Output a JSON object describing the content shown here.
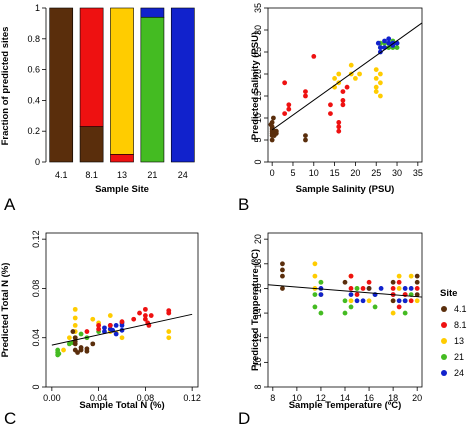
{
  "colors": {
    "4.1": "#5a2e0c",
    "8.1": "#ee1111",
    "13": "#ffcc00",
    "21": "#44bb22",
    "24": "#1122cc"
  },
  "legend": {
    "title": "Site",
    "items": [
      "4.1",
      "8.1",
      "13",
      "21",
      "24"
    ]
  },
  "chart_data": [
    {
      "panel": "A",
      "type": "bar",
      "stacked": true,
      "xlabel": "Sample Site",
      "ylabel": "Fraction of predicted sites",
      "ylim": [
        0,
        1
      ],
      "yticks": [
        "0",
        "0.2",
        "0.4",
        "0.6",
        "0.8",
        "1"
      ],
      "categories": [
        "4.1",
        "8.1",
        "13",
        "21",
        "24"
      ],
      "series": [
        {
          "name": "4.1",
          "values": [
            1.0,
            0.23,
            0.0,
            0.0,
            0.0
          ]
        },
        {
          "name": "8.1",
          "values": [
            0.0,
            0.77,
            0.05,
            0.0,
            0.0
          ]
        },
        {
          "name": "13",
          "values": [
            0.0,
            0.0,
            0.95,
            0.0,
            0.0
          ]
        },
        {
          "name": "21",
          "values": [
            0.0,
            0.0,
            0.0,
            0.94,
            0.0
          ]
        },
        {
          "name": "24",
          "values": [
            0.0,
            0.0,
            0.0,
            0.06,
            1.0
          ]
        }
      ]
    },
    {
      "panel": "B",
      "type": "scatter",
      "xlabel": "Sample Salinity (PSU)",
      "ylabel": "Predicted Salinity (PSU)",
      "xlim": [
        -1,
        36
      ],
      "ylim": [
        0,
        35
      ],
      "xticks": [
        0,
        5,
        10,
        15,
        20,
        25,
        30,
        35
      ],
      "yticks": [
        0,
        5,
        10,
        15,
        20,
        25,
        30,
        35
      ],
      "fit_line": [
        [
          0,
          7.3
        ],
        [
          36,
          31.6
        ]
      ],
      "points": {
        "4.1": [
          [
            0,
            5
          ],
          [
            0,
            6
          ],
          [
            0,
            6.5
          ],
          [
            0,
            7
          ],
          [
            0,
            7.5
          ],
          [
            0,
            8
          ],
          [
            0,
            9
          ],
          [
            0.5,
            6
          ],
          [
            0.5,
            7
          ],
          [
            1,
            6.5
          ],
          [
            1,
            7
          ],
          [
            -0.3,
            8.5
          ],
          [
            0.3,
            10
          ],
          [
            8,
            5
          ],
          [
            8,
            6
          ]
        ],
        "8.1": [
          [
            3,
            18
          ],
          [
            3,
            11
          ],
          [
            4,
            12
          ],
          [
            4,
            13
          ],
          [
            8,
            15
          ],
          [
            8,
            16
          ],
          [
            10,
            24
          ],
          [
            16,
            7
          ],
          [
            16,
            8
          ],
          [
            16,
            9
          ],
          [
            17,
            13
          ],
          [
            17,
            14
          ],
          [
            17,
            16
          ],
          [
            18,
            17
          ],
          [
            14,
            11
          ],
          [
            14,
            13
          ]
        ],
        "13": [
          [
            15,
            17
          ],
          [
            15,
            19
          ],
          [
            16,
            18
          ],
          [
            16,
            20
          ],
          [
            19,
            20
          ],
          [
            19,
            22
          ],
          [
            20,
            19
          ],
          [
            21,
            20
          ],
          [
            25,
            16
          ],
          [
            25,
            17
          ],
          [
            25,
            19
          ],
          [
            26,
            15
          ],
          [
            26,
            18
          ],
          [
            26,
            20
          ],
          [
            25,
            21
          ]
        ],
        "21": [
          [
            26,
            26
          ],
          [
            26,
            27
          ],
          [
            27,
            26
          ],
          [
            27,
            27
          ],
          [
            28,
            26
          ],
          [
            28,
            27
          ],
          [
            29,
            26
          ],
          [
            30,
            26
          ],
          [
            30,
            27
          ],
          [
            29,
            27.5
          ]
        ],
        "24": [
          [
            26,
            25
          ],
          [
            26,
            26
          ],
          [
            27,
            26
          ],
          [
            27,
            27.5
          ],
          [
            28,
            27
          ],
          [
            28,
            28
          ],
          [
            29,
            27
          ],
          [
            30,
            27
          ],
          [
            25.5,
            27
          ],
          [
            29,
            26.5
          ]
        ]
      }
    },
    {
      "panel": "C",
      "type": "scatter",
      "xlabel": "Sample Total N (%)",
      "ylabel": "Predicted Total N (%)",
      "xlim": [
        -0.005,
        0.125
      ],
      "ylim": [
        0,
        0.125
      ],
      "xticks": [
        "0.00",
        "0.04",
        "0.08",
        "0.12"
      ],
      "yticks": [
        "0",
        "0.04",
        "0.08",
        "0.12"
      ],
      "fit_line": [
        [
          0,
          0.034
        ],
        [
          0.12,
          0.059
        ]
      ],
      "points": {
        "4.1": [
          [
            0.02,
            0.03
          ],
          [
            0.022,
            0.028
          ],
          [
            0.025,
            0.032
          ],
          [
            0.025,
            0.03
          ],
          [
            0.03,
            0.029
          ],
          [
            0.03,
            0.031
          ],
          [
            0.035,
            0.035
          ],
          [
            0.018,
            0.045
          ],
          [
            0.02,
            0.04
          ],
          [
            0.02,
            0.035
          ],
          [
            0.02,
            0.037
          ]
        ],
        "8.1": [
          [
            0.03,
            0.045
          ],
          [
            0.04,
            0.047
          ],
          [
            0.04,
            0.05
          ],
          [
            0.05,
            0.05
          ],
          [
            0.06,
            0.053
          ],
          [
            0.07,
            0.055
          ],
          [
            0.075,
            0.06
          ],
          [
            0.08,
            0.063
          ],
          [
            0.08,
            0.058
          ],
          [
            0.08,
            0.055
          ],
          [
            0.083,
            0.05
          ],
          [
            0.1,
            0.062
          ],
          [
            0.1,
            0.06
          ],
          [
            0.085,
            0.058
          ],
          [
            0.082,
            0.052
          ]
        ],
        "13": [
          [
            0.01,
            0.03
          ],
          [
            0.015,
            0.04
          ],
          [
            0.02,
            0.063
          ],
          [
            0.02,
            0.045
          ],
          [
            0.02,
            0.05
          ],
          [
            0.04,
            0.05
          ],
          [
            0.04,
            0.052
          ],
          [
            0.05,
            0.058
          ],
          [
            0.05,
            0.045
          ],
          [
            0.055,
            0.044
          ],
          [
            0.06,
            0.04
          ],
          [
            0.1,
            0.045
          ],
          [
            0.1,
            0.04
          ],
          [
            0.035,
            0.055
          ],
          [
            0.02,
            0.056
          ]
        ],
        "21": [
          [
            0.005,
            0.028
          ],
          [
            0.005,
            0.026
          ],
          [
            0.005,
            0.03
          ],
          [
            0.015,
            0.035
          ],
          [
            0.02,
            0.04
          ],
          [
            0.03,
            0.04
          ],
          [
            0.04,
            0.045
          ],
          [
            0.025,
            0.043
          ],
          [
            0.018,
            0.036
          ],
          [
            0.006,
            0.027
          ]
        ],
        "24": [
          [
            0.045,
            0.045
          ],
          [
            0.05,
            0.047
          ],
          [
            0.05,
            0.05
          ],
          [
            0.055,
            0.05
          ],
          [
            0.06,
            0.05
          ],
          [
            0.06,
            0.046
          ],
          [
            0.055,
            0.043
          ],
          [
            0.045,
            0.048
          ],
          [
            0.06,
            0.052
          ],
          [
            0.052,
            0.046
          ]
        ]
      }
    },
    {
      "panel": "D",
      "type": "scatter",
      "xlabel": "Sample Temperature (ºC)",
      "ylabel": "Predicted Temperature (ºC)",
      "xlim": [
        7.6,
        20.4
      ],
      "ylim": [
        8,
        20.5
      ],
      "xticks": [
        8,
        10,
        12,
        14,
        16,
        18,
        20
      ],
      "yticks": [
        8,
        10,
        12,
        14,
        16,
        18,
        20
      ],
      "fit_line": [
        [
          7.6,
          16.3
        ],
        [
          20.4,
          15.3
        ]
      ],
      "points": {
        "4.1": [
          [
            8.8,
            16
          ],
          [
            8.8,
            17
          ],
          [
            8.8,
            17.5
          ],
          [
            8.8,
            18
          ],
          [
            14,
            16.5
          ],
          [
            16,
            16
          ],
          [
            18,
            16.5
          ],
          [
            18,
            15
          ],
          [
            19,
            15.5
          ],
          [
            20,
            16.5
          ],
          [
            20,
            15.5
          ],
          [
            20,
            17
          ]
        ],
        "8.1": [
          [
            14.5,
            16
          ],
          [
            14.5,
            17
          ],
          [
            15,
            15.5
          ],
          [
            15.5,
            16
          ],
          [
            16,
            16.5
          ],
          [
            18,
            16
          ],
          [
            18,
            15.5
          ],
          [
            18.5,
            16.5
          ],
          [
            19,
            15.5
          ],
          [
            20,
            16
          ],
          [
            19.5,
            15
          ],
          [
            18.5,
            14.5
          ]
        ],
        "13": [
          [
            11.5,
            18
          ],
          [
            11.5,
            17
          ],
          [
            11.5,
            16
          ],
          [
            12,
            16.5
          ],
          [
            12,
            15.5
          ],
          [
            14.5,
            17
          ],
          [
            14.5,
            15
          ],
          [
            15,
            16
          ],
          [
            16,
            15
          ],
          [
            18,
            15
          ],
          [
            18,
            14
          ],
          [
            18.5,
            17
          ],
          [
            18.5,
            16
          ],
          [
            19.5,
            17
          ],
          [
            20,
            15
          ]
        ],
        "21": [
          [
            11.5,
            15.5
          ],
          [
            11.5,
            14.5
          ],
          [
            12,
            14
          ],
          [
            12,
            16.5
          ],
          [
            14,
            15
          ],
          [
            14,
            14
          ],
          [
            14.5,
            14.5
          ],
          [
            15,
            16
          ],
          [
            16.5,
            14.5
          ],
          [
            16.5,
            15.5
          ],
          [
            19,
            15
          ],
          [
            19,
            14
          ],
          [
            19.5,
            15.5
          ]
        ],
        "24": [
          [
            12,
            15.5
          ],
          [
            12,
            16
          ],
          [
            14.5,
            15.5
          ],
          [
            15,
            15
          ],
          [
            15.5,
            15
          ],
          [
            16,
            16
          ],
          [
            16.5,
            15.5
          ],
          [
            17,
            16
          ],
          [
            18,
            15.5
          ],
          [
            18.5,
            15
          ],
          [
            19,
            15
          ],
          [
            19,
            16
          ],
          [
            19.5,
            16
          ]
        ]
      }
    }
  ]
}
